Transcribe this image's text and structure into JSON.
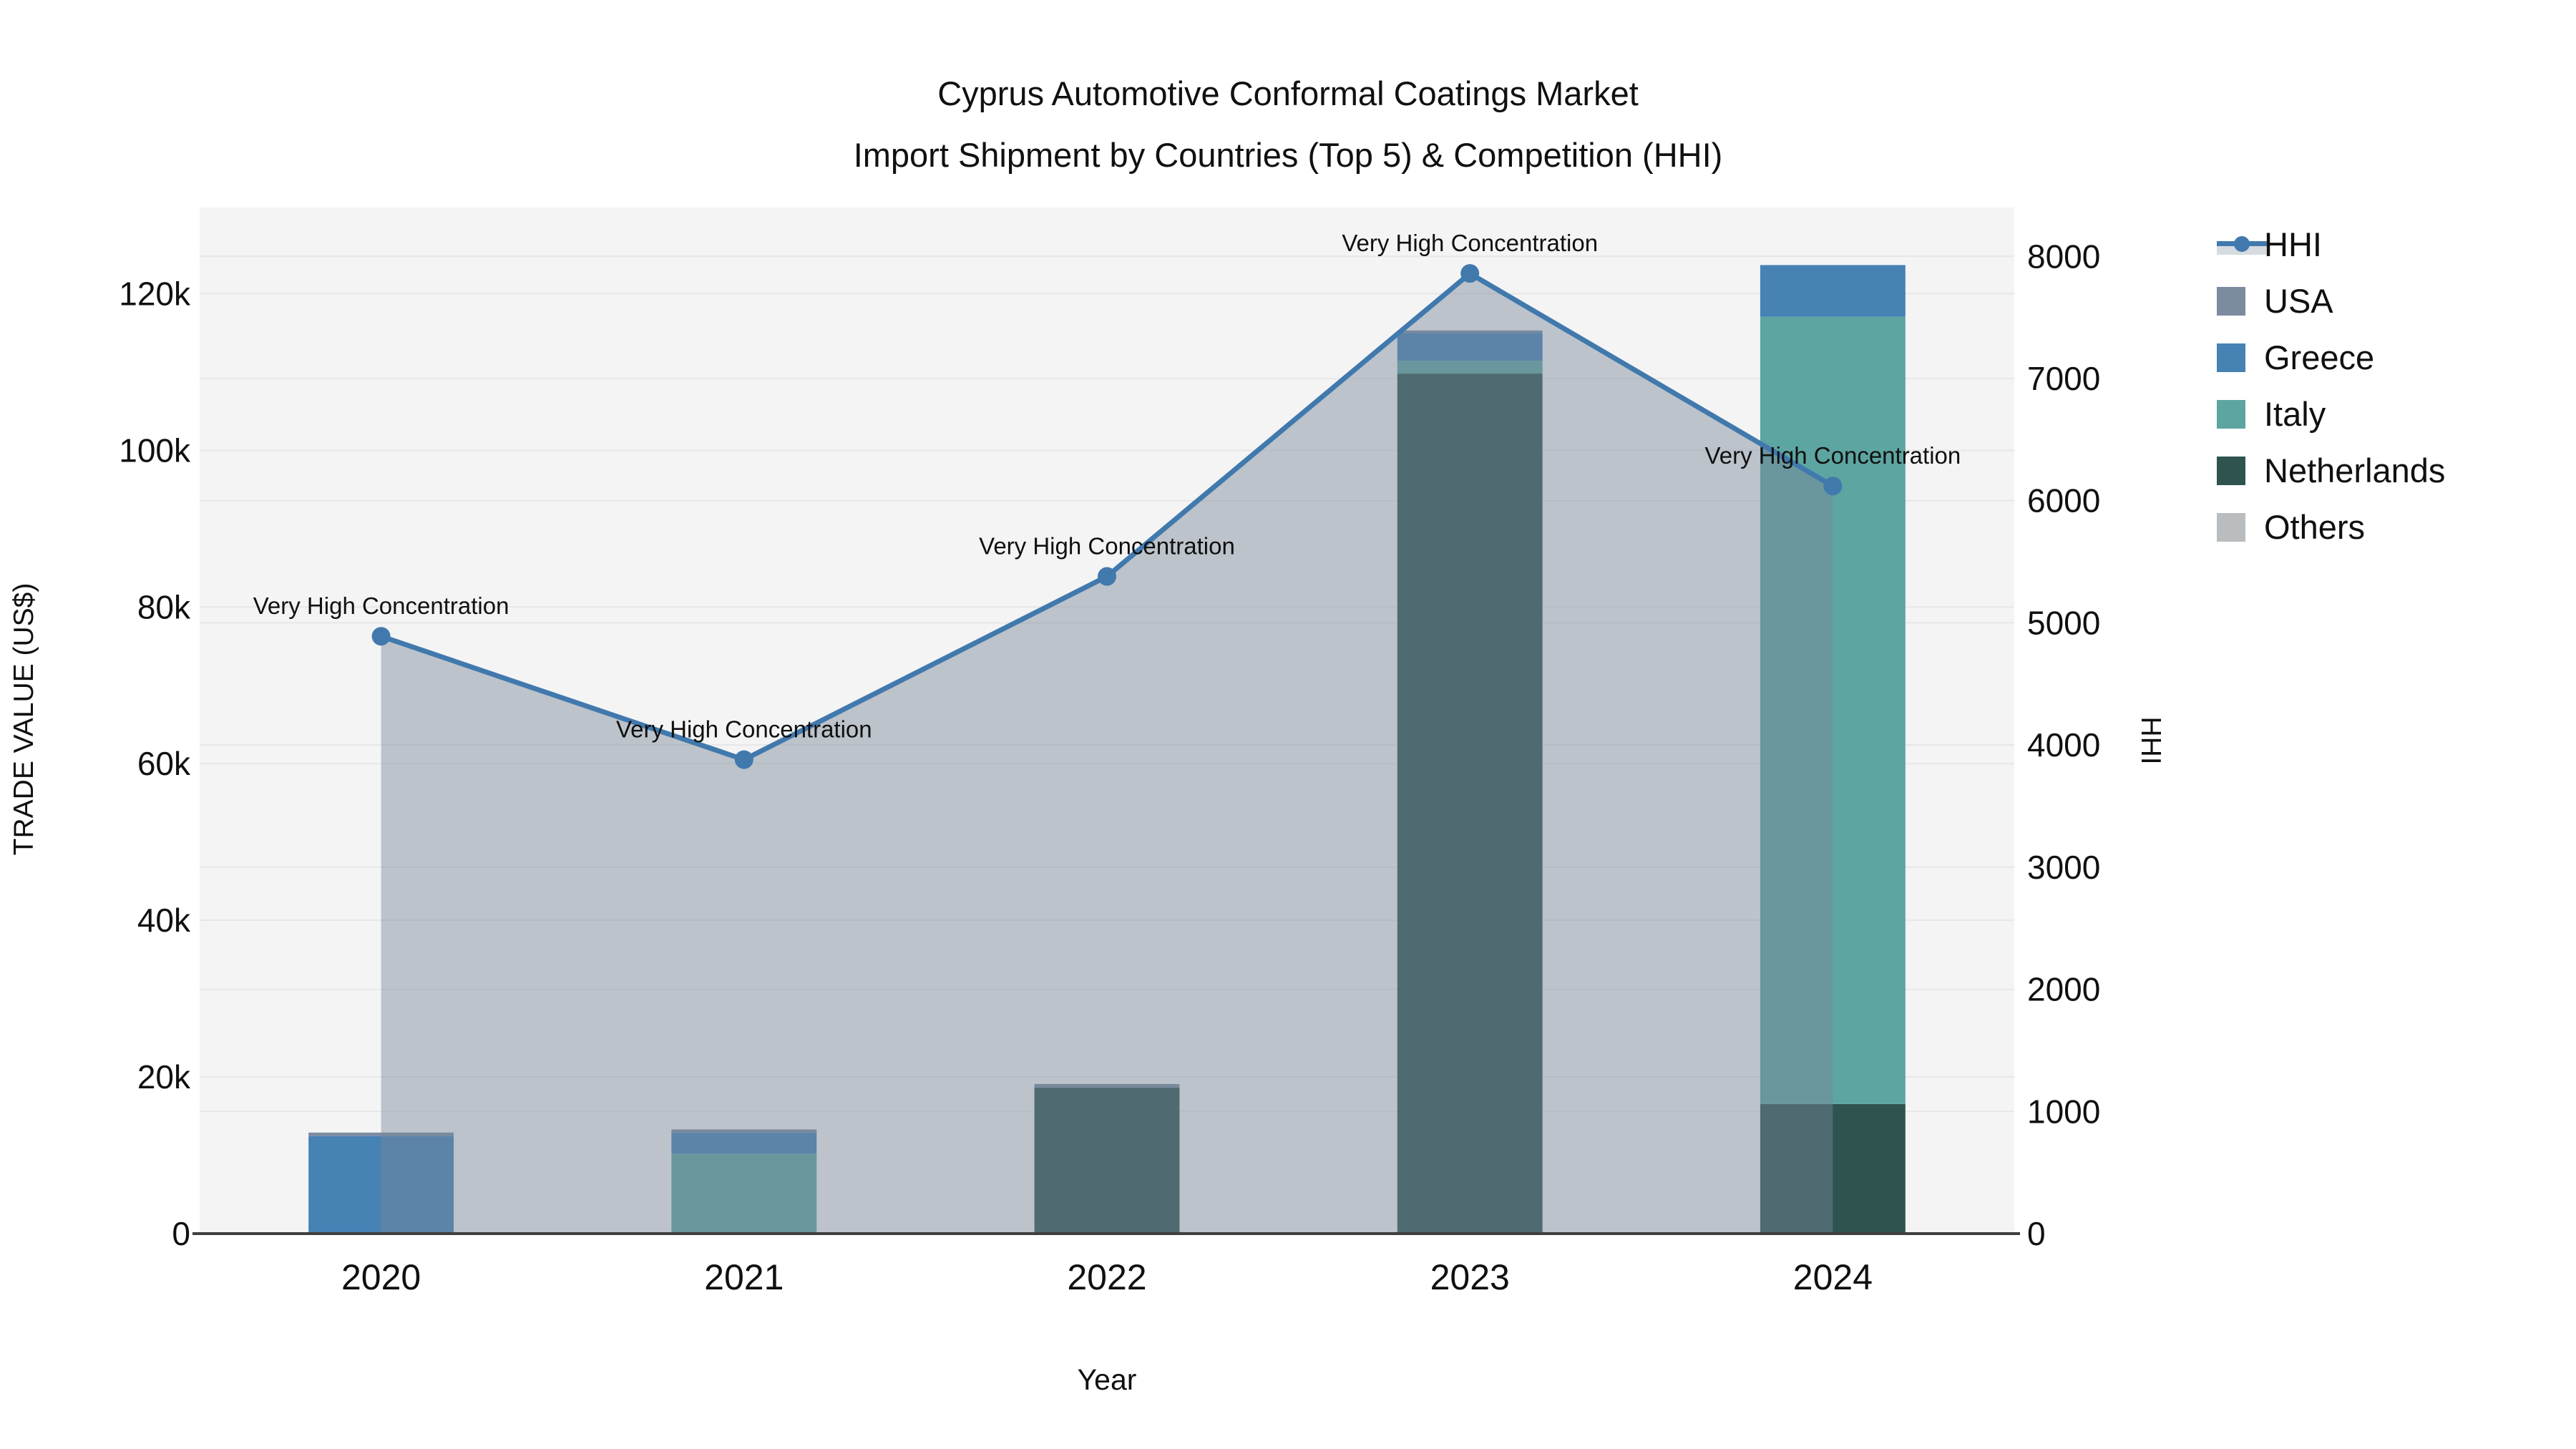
{
  "chart_data": {
    "type": "bar+line",
    "title": "Cyprus Automotive Conformal Coatings Market",
    "subtitle": "Import Shipment by Countries (Top 5) & Competition (HHI)",
    "xlabel": "Year",
    "ylabel_left": "TRADE VALUE (US$)",
    "ylabel_right": "HHI",
    "categories": [
      "2020",
      "2021",
      "2022",
      "2023",
      "2024"
    ],
    "bar_stack_order_bottom_to_top": [
      "Netherlands",
      "Italy",
      "Greece",
      "USA",
      "Others"
    ],
    "series": [
      {
        "name": "HHI",
        "type": "line",
        "axis": "right",
        "color": "#4179ad",
        "area_fill": "rgba(119,136,153,0.45)",
        "values": [
          4890,
          3880,
          5380,
          7860,
          6120
        ]
      },
      {
        "name": "USA",
        "type": "bar",
        "color": "#7b8ba0",
        "values": [
          450,
          400,
          450,
          300,
          0
        ]
      },
      {
        "name": "Greece",
        "type": "bar",
        "color": "#4682b4",
        "values": [
          12450,
          2700,
          0,
          3550,
          6600
        ]
      },
      {
        "name": "Italy",
        "type": "bar",
        "color": "#5da5a1",
        "values": [
          0,
          10200,
          0,
          1650,
          100500
        ]
      },
      {
        "name": "Netherlands",
        "type": "bar",
        "color": "#2f5450",
        "values": [
          0,
          0,
          18650,
          109800,
          16550
        ]
      },
      {
        "name": "Others",
        "type": "bar",
        "color": "#b9bdbf",
        "values": [
          0,
          0,
          0,
          0,
          0
        ]
      }
    ],
    "bar_totals": [
      12900,
      13300,
      19100,
      115300,
      123650
    ],
    "annotations": [
      {
        "x": "2020",
        "text": "Very High Concentration"
      },
      {
        "x": "2021",
        "text": "Very High Concentration"
      },
      {
        "x": "2022",
        "text": "Very High Concentration"
      },
      {
        "x": "2023",
        "text": "Very High Concentration"
      },
      {
        "x": "2024",
        "text": "Very High Concentration"
      }
    ],
    "left_axis": {
      "ticks": [
        0,
        20000,
        40000,
        60000,
        80000,
        100000,
        120000
      ],
      "tick_labels": [
        "0",
        "20k",
        "40k",
        "60k",
        "80k",
        "100k",
        "120k"
      ],
      "ylim": [
        0,
        131000
      ]
    },
    "right_axis": {
      "ticks": [
        0,
        1000,
        2000,
        3000,
        4000,
        5000,
        6000,
        7000,
        8000
      ],
      "tick_labels": [
        "0",
        "1000",
        "2000",
        "3000",
        "4000",
        "5000",
        "6000",
        "7000",
        "8000"
      ],
      "ylim": [
        0,
        8400
      ]
    },
    "legend_order": [
      "HHI",
      "USA",
      "Greece",
      "Italy",
      "Netherlands",
      "Others"
    ],
    "grid": true,
    "legend_position": "right",
    "plot_bg_color": "#f4f4f5",
    "grid_color": "#e7e7e9",
    "axis_line_color": "#3f3f3f",
    "text_color": "#101010"
  }
}
